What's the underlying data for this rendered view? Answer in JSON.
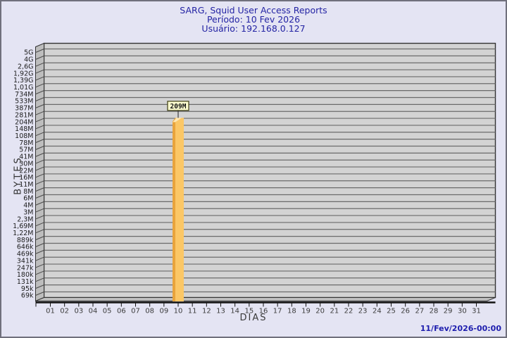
{
  "header": {
    "title": "SARG, Squid User Access Reports",
    "subtitle_period": "Período: 10 Fev 2026",
    "subtitle_user": "Usuário: 192.168.0.127"
  },
  "footer": {
    "timestamp": "11/Fev/2026-00:00"
  },
  "chart_data": {
    "type": "bar",
    "title": "SARG, Squid User Access Reports",
    "xlabel": "DIAS",
    "ylabel": "BYTES",
    "y_scale": "log",
    "ylim": [
      69000,
      5000000000
    ],
    "grid": "on",
    "x_tick_labels": [
      "01",
      "02",
      "03",
      "04",
      "05",
      "06",
      "07",
      "08",
      "09",
      "10",
      "11",
      "12",
      "13",
      "14",
      "15",
      "16",
      "17",
      "18",
      "19",
      "20",
      "21",
      "22",
      "23",
      "24",
      "25",
      "26",
      "27",
      "28",
      "29",
      "30",
      "31"
    ],
    "y_tick_labels": [
      "5G",
      "4G",
      "2,6G",
      "1,92G",
      "1,39G",
      "1,01G",
      "734M",
      "533M",
      "387M",
      "281M",
      "204M",
      "148M",
      "108M",
      "78M",
      "57M",
      "41M",
      "30M",
      "22M",
      "16M",
      "11M",
      "8M",
      "6M",
      "4M",
      "3M",
      "2,3M",
      "1,69M",
      "1,22M",
      "889k",
      "646k",
      "469k",
      "341k",
      "247k",
      "180k",
      "131k",
      "95k",
      "69k"
    ],
    "y_tick_values": [
      5000000000,
      4000000000,
      2600000000,
      1920000000,
      1390000000,
      1010000000,
      734000000,
      533000000,
      387000000,
      281000000,
      204000000,
      148000000,
      108000000,
      78000000,
      57000000,
      41000000,
      30000000,
      22000000,
      16000000,
      11000000,
      8000000,
      6000000,
      4000000,
      3000000,
      2300000,
      1690000,
      1220000,
      889000,
      646000,
      469000,
      341000,
      247000,
      180000,
      131000,
      95000,
      69000
    ],
    "bars": [
      {
        "day": "10",
        "value": 209000000,
        "label": "209M"
      }
    ],
    "colors": {
      "plot_bg": "#d3d3d3",
      "grid_line": "#6b6b6b",
      "wall": "#bdbdbd",
      "wall_line": "#4a4a4a",
      "frame_line": "#333333",
      "axis_line": "#111111",
      "tick_text": "#1c1c1c",
      "day_text": "#3c3c3c",
      "bar_face": "#fbc766",
      "bar_side": "#e9a43c",
      "bar_cap": "#ffe8b4",
      "label_box_bg": "#ffffd0",
      "label_box_border": "#3d3d12",
      "title_color": "#2424a4",
      "timestamp_color": "#1d1dae"
    }
  }
}
